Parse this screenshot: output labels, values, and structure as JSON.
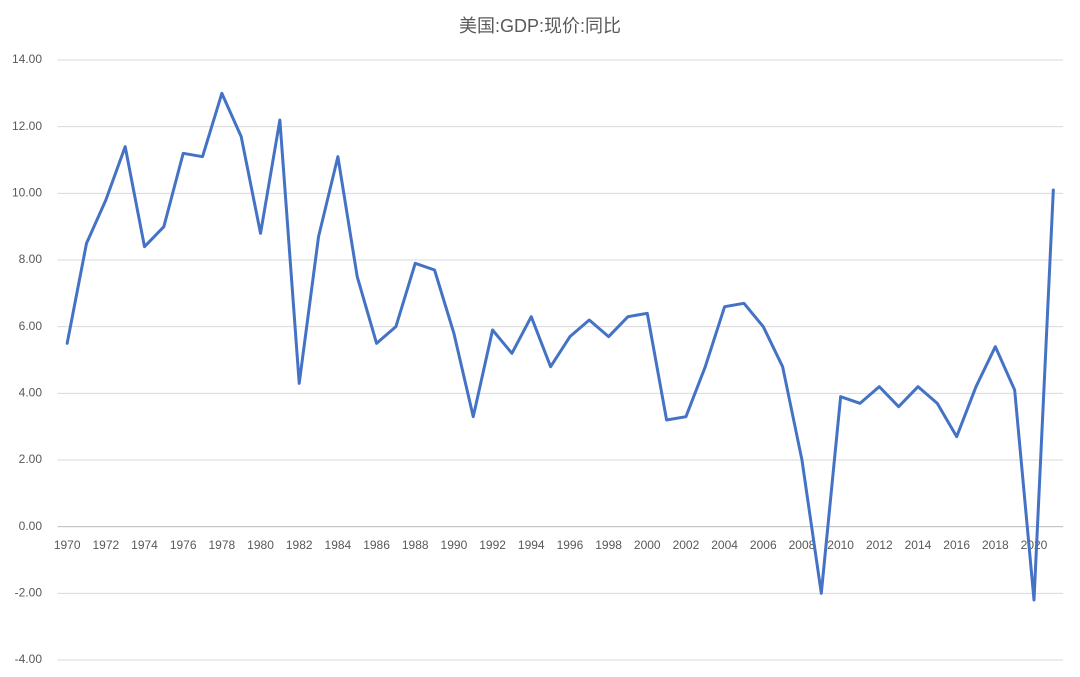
{
  "chart_data": {
    "type": "line",
    "title": "美国:GDP:现价:同比",
    "categories": [
      "1970",
      null,
      "1972",
      null,
      "1974",
      null,
      "1976",
      null,
      "1978",
      null,
      "1980",
      null,
      "1982",
      null,
      "1984",
      null,
      "1986",
      null,
      "1988",
      null,
      "1990",
      null,
      "1992",
      null,
      "1994",
      null,
      "1996",
      null,
      "1998",
      null,
      "2000",
      null,
      "2002",
      null,
      "2004",
      null,
      "2006",
      null,
      "2008",
      null,
      "2010",
      null,
      "2012",
      null,
      "2014",
      null,
      "2016",
      null,
      "2018",
      null,
      "2020",
      null
    ],
    "series": [
      {
        "color": "#4472c4",
        "values": [
          5.5,
          8.5,
          9.8,
          11.4,
          8.4,
          9.0,
          11.2,
          11.1,
          13.0,
          11.7,
          8.8,
          12.2,
          4.3,
          8.7,
          11.1,
          7.5,
          5.5,
          6.0,
          7.9,
          7.7,
          5.8,
          3.3,
          5.9,
          5.2,
          6.3,
          4.8,
          5.7,
          6.2,
          5.7,
          6.3,
          6.4,
          3.2,
          3.3,
          4.8,
          6.6,
          6.7,
          6.0,
          4.8,
          2.0,
          -2.0,
          3.9,
          3.7,
          4.2,
          3.6,
          4.2,
          3.7,
          2.7,
          4.2,
          5.4,
          4.1,
          -2.2,
          10.1
        ]
      }
    ],
    "ylim": [
      -4,
      14
    ],
    "yticks": [
      {
        "value": -4,
        "label": "-4.00"
      },
      {
        "value": -2,
        "label": "-2.00"
      },
      {
        "value": 0,
        "label": "0.00"
      },
      {
        "value": 2,
        "label": "2.00"
      },
      {
        "value": 4,
        "label": "4.00"
      },
      {
        "value": 6,
        "label": "6.00"
      },
      {
        "value": 8,
        "label": "8.00"
      },
      {
        "value": 10,
        "label": "10.00"
      },
      {
        "value": 12,
        "label": "12.00"
      },
      {
        "value": 14,
        "label": "14.00"
      }
    ],
    "grid": true
  }
}
